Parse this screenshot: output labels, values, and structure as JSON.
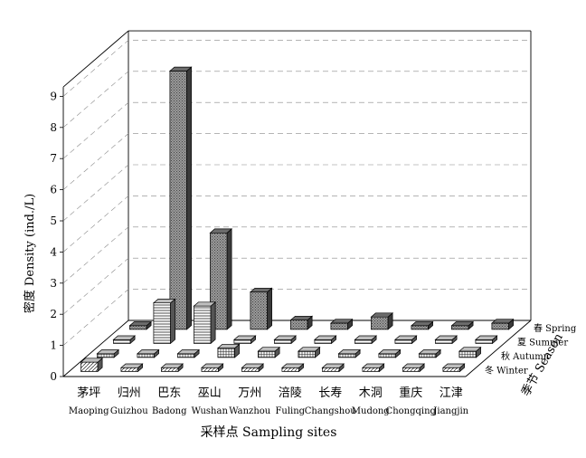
{
  "chart_data": {
    "type": "bar",
    "title": "",
    "xlabel": "采样点  Sampling sites",
    "ylabel": "密度  Density (ind./L)",
    "zlabel": "季节  Season",
    "ylim": [
      0,
      9
    ],
    "yticks": [
      "0",
      "1",
      "2",
      "3",
      "4",
      "5",
      "6",
      "7",
      "8",
      "9"
    ],
    "grid": true,
    "categories": [
      {
        "zh": "茅坪",
        "en": "Maoping"
      },
      {
        "zh": "归州",
        "en": "Guizhou"
      },
      {
        "zh": "巴东",
        "en": "Badong"
      },
      {
        "zh": "巫山",
        "en": "Wushan"
      },
      {
        "zh": "万州",
        "en": "Wanzhou"
      },
      {
        "zh": "涪陵",
        "en": "Fuling"
      },
      {
        "zh": "长寿",
        "en": "Changshou"
      },
      {
        "zh": "木洞",
        "en": "Mudong"
      },
      {
        "zh": "重庆",
        "en": "Chongqing"
      },
      {
        "zh": "江津",
        "en": "Jiangjin"
      }
    ],
    "series": [
      {
        "name": "冬 Winter",
        "values": [
          0.3,
          0.0,
          0.0,
          0.0,
          0.0,
          0.0,
          0.0,
          0.0,
          0.0,
          0.0
        ],
        "color": "#e6e6e6"
      },
      {
        "name": "秋 Autumn",
        "values": [
          0.0,
          0.05,
          0.1,
          0.3,
          0.2,
          0.2,
          0.1,
          0.1,
          0.1,
          0.2
        ],
        "color": "#d9d9d9"
      },
      {
        "name": "夏 Summer",
        "values": [
          0.0,
          1.3,
          1.2,
          0.0,
          0.0,
          0.0,
          0.0,
          0.0,
          0.0,
          0.0
        ],
        "color": "#f2f2f2"
      },
      {
        "name": "春 Spring",
        "values": [
          0.0,
          8.3,
          3.1,
          1.2,
          0.3,
          0.2,
          0.4,
          0.1,
          0.1,
          0.2
        ],
        "color": "#8c8c8c"
      }
    ]
  }
}
